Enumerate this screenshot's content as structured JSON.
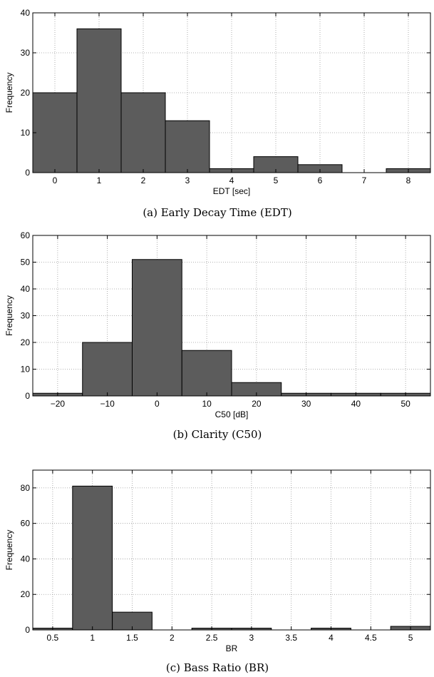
{
  "chart_data": [
    {
      "type": "bar",
      "caption": "(a) Early Decay Time (EDT)",
      "xlabel": "EDT [sec]",
      "ylabel": "Frequency",
      "xlim": [
        -0.5,
        8.5
      ],
      "ylim": [
        0,
        40
      ],
      "bin_width": 1,
      "x": [
        0,
        1,
        2,
        3,
        4,
        5,
        6,
        7,
        8
      ],
      "values": [
        20,
        36,
        20,
        13,
        1,
        4,
        2,
        0,
        1
      ],
      "xticks": [
        0,
        1,
        2,
        3,
        4,
        5,
        6,
        7,
        8
      ],
      "xtick_labels": [
        "0",
        "1",
        "2",
        "3",
        "4",
        "5",
        "6",
        "7",
        "8"
      ],
      "yticks": [
        0,
        10,
        20,
        30,
        40
      ],
      "ytick_labels": [
        "0",
        "10",
        "20",
        "30",
        "40"
      ],
      "grid": true
    },
    {
      "type": "bar",
      "caption": "(b) Clarity (C50)",
      "xlabel": "C50 [dB]",
      "ylabel": "Frequency",
      "xlim": [
        -25,
        55
      ],
      "ylim": [
        0,
        60
      ],
      "bin_width": 10,
      "x": [
        -20,
        -10,
        0,
        10,
        20,
        30,
        40,
        50
      ],
      "values": [
        1,
        20,
        51,
        17,
        5,
        1,
        1,
        1
      ],
      "xticks": [
        -20,
        -10,
        0,
        10,
        20,
        30,
        40,
        50
      ],
      "xtick_labels": [
        "−20",
        "−10",
        "0",
        "10",
        "20",
        "30",
        "40",
        "50"
      ],
      "yticks": [
        0,
        10,
        20,
        30,
        40,
        50,
        60
      ],
      "ytick_labels": [
        "0",
        "10",
        "20",
        "30",
        "40",
        "50",
        "60"
      ],
      "grid": true
    },
    {
      "type": "bar",
      "caption": "(c) Bass Ratio (BR)",
      "xlabel": "BR",
      "ylabel": "Frequency",
      "xlim": [
        0.25,
        5.25
      ],
      "ylim": [
        0,
        90
      ],
      "bin_width": 0.5,
      "x": [
        0.5,
        1,
        1.5,
        2,
        2.5,
        3,
        3.5,
        4,
        4.5,
        5
      ],
      "values": [
        1,
        81,
        10,
        0,
        1,
        1,
        0,
        1,
        0,
        2
      ],
      "xticks": [
        0.5,
        1,
        1.5,
        2,
        2.5,
        3,
        3.5,
        4,
        4.5,
        5
      ],
      "xtick_labels": [
        "0.5",
        "1",
        "1.5",
        "2",
        "2.5",
        "3",
        "3.5",
        "4",
        "4.5",
        "5"
      ],
      "yticks": [
        0,
        20,
        40,
        60,
        80
      ],
      "ytick_labels": [
        "0",
        "20",
        "40",
        "60",
        "80"
      ],
      "grid": true
    }
  ],
  "colors": {
    "bar_fill": "#5c5c5c",
    "bar_edge": "#000000",
    "grid": "#9a9a9a"
  }
}
